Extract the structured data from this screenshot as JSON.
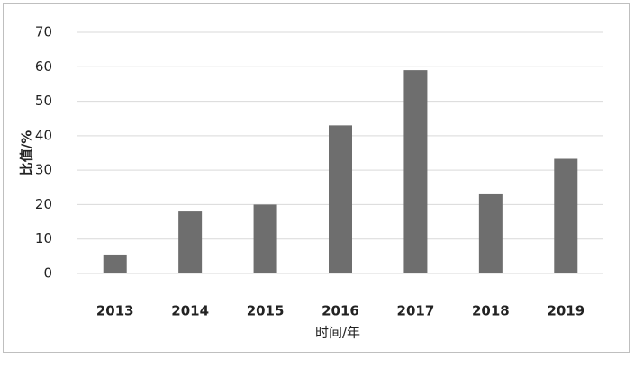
{
  "chart_data": {
    "type": "bar",
    "x_label": "时间/年",
    "y_label": "比值/%",
    "categories": [
      "2013",
      "2014",
      "2015",
      "2016",
      "2017",
      "2018",
      "2019"
    ],
    "values": [
      5.5,
      18,
      20,
      43,
      59,
      23,
      33.3
    ],
    "color": "#6e6e6e",
    "ylim": [
      0,
      70
    ],
    "yticks": [
      0,
      10,
      20,
      30,
      40,
      50,
      60,
      70
    ],
    "grid": true
  }
}
